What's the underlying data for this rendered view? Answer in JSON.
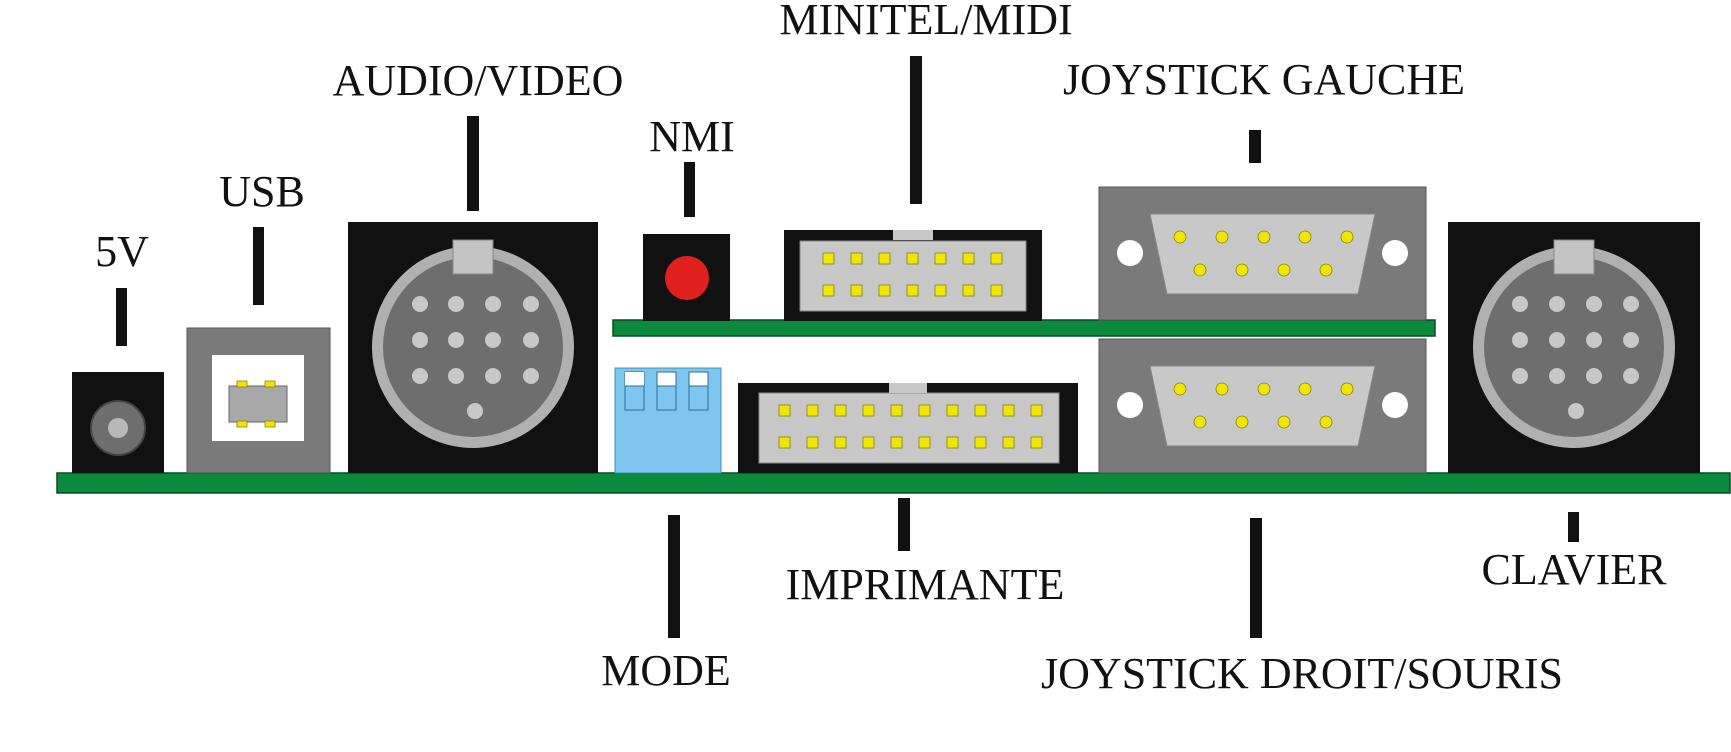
{
  "labels": {
    "power": "5V",
    "usb": "USB",
    "audio_video": "AUDIO/VIDEO",
    "nmi": "NMI",
    "minitel_midi": "MINITEL/MIDI",
    "joystick_left": "JOYSTICK GAUCHE",
    "mode": "MODE",
    "printer": "IMPRIMANTE",
    "joystick_right_mouse": "JOYSTICK DROIT/SOURIS",
    "keyboard": "CLAVIER"
  },
  "colors": {
    "pcb_green": "#0b8a3c",
    "connector_black": "#111111",
    "connector_grey": "#7a7a7a",
    "pin_yellow": "#f2e600",
    "button_red": "#e0201c",
    "dip_blue": "#7fc6ee"
  }
}
